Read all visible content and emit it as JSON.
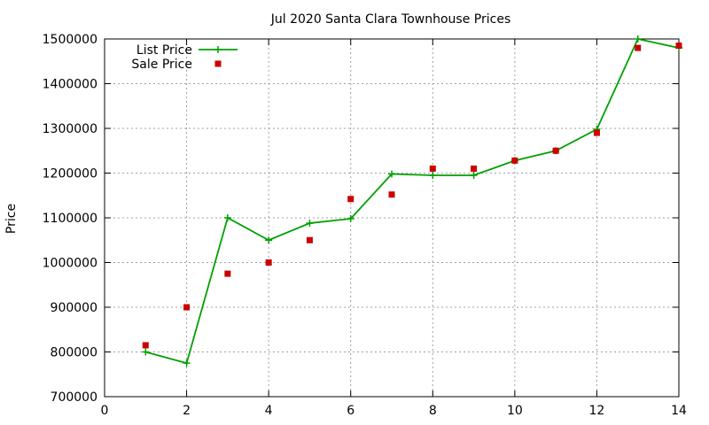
{
  "chart_data": {
    "type": "line",
    "title": "Jul 2020 Santa Clara Townhouse Prices",
    "xlabel": "",
    "ylabel": "Price",
    "xlim": [
      0,
      14
    ],
    "ylim": [
      700000,
      1500000
    ],
    "xticks": [
      0,
      2,
      4,
      6,
      8,
      10,
      12,
      14
    ],
    "yticks": [
      700000,
      800000,
      900000,
      1000000,
      1100000,
      1200000,
      1300000,
      1400000,
      1500000
    ],
    "grid": true,
    "legend": "top-left",
    "series": [
      {
        "name": "List Price",
        "style": "line-points",
        "marker": "plus",
        "color": "#00a000",
        "x": [
          1,
          2,
          3,
          4,
          5,
          6,
          7,
          8,
          9,
          10,
          11,
          12,
          13,
          14
        ],
        "values": [
          800000,
          775000,
          1100000,
          1050000,
          1088000,
          1098000,
          1198000,
          1195000,
          1195000,
          1228000,
          1250000,
          1298000,
          1500000,
          1480000
        ]
      },
      {
        "name": "Sale Price",
        "style": "points",
        "marker": "square",
        "color": "#cc0000",
        "x": [
          1,
          2,
          3,
          4,
          5,
          6,
          7,
          8,
          9,
          10,
          11,
          12,
          13,
          14
        ],
        "values": [
          815000,
          900000,
          975000,
          1000000,
          1050000,
          1142000,
          1152000,
          1210000,
          1210000,
          1228000,
          1250000,
          1290000,
          1480000,
          1485000
        ]
      }
    ]
  }
}
